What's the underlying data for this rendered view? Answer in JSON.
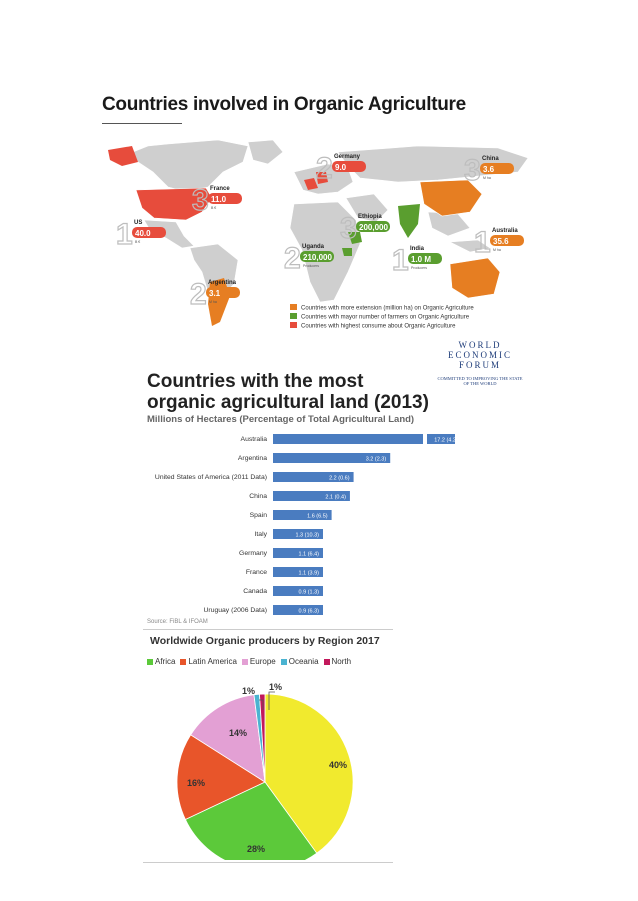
{
  "page_title": "Countries involved in Organic Agriculture",
  "map": {
    "legend": [
      {
        "label": "Countries with more extension (million ha) on Organic Agriculture",
        "color": "#e67e22"
      },
      {
        "label": "Countries with mayor number of farmers on Organic Agriculture",
        "color": "#5a9e2f"
      },
      {
        "label": "Countries with highest consume about Organic Agriculture",
        "color": "#e74c3c"
      }
    ],
    "callouts": [
      {
        "rank": "1",
        "country": "US",
        "value": "40.0",
        "unit": "B €",
        "color": "#e74c3c"
      },
      {
        "rank": "2",
        "country": "Germany",
        "value": "9.0",
        "unit": "",
        "color": "#e74c3c"
      },
      {
        "rank": "3",
        "country": "France",
        "value": "11.0",
        "unit": "B €",
        "color": "#e74c3c"
      },
      {
        "rank": "1",
        "country": "Australia",
        "value": "35.6",
        "unit": "M ha",
        "color": "#e67e22"
      },
      {
        "rank": "2",
        "country": "Argentina",
        "value": "3.1",
        "unit": "M ha",
        "color": "#e67e22"
      },
      {
        "rank": "3",
        "country": "China",
        "value": "3.6",
        "unit": "M ha",
        "color": "#e67e22"
      },
      {
        "rank": "1",
        "country": "India",
        "value": "1.0 M",
        "unit": "Producers",
        "color": "#5a9e2f"
      },
      {
        "rank": "2",
        "country": "Uganda",
        "value": "210,000",
        "unit": "Producers",
        "color": "#5a9e2f"
      },
      {
        "rank": "3",
        "country": "Ethiopia",
        "value": "200,000",
        "unit": "",
        "color": "#5a9e2f"
      }
    ]
  },
  "wef": {
    "line1": "WORLD",
    "line2": "ECONOMIC",
    "line3": "FORUM",
    "tagline": "COMMITTED TO IMPROVING THE STATE OF THE WORLD"
  },
  "chart_data": [
    {
      "type": "bar",
      "title": "Countries with the most organic agricultural land (2013)",
      "subtitle": "Millions of  Hectares (Percentage of Total Agricultural Land)",
      "source": "Source: FiBL & IFOAM",
      "categories": [
        "Australia",
        "Argentina",
        "United States of America (2011 Data)",
        "China",
        "Spain",
        "Italy",
        "Germany",
        "France",
        "Canada",
        "Uruguay (2006 Data)"
      ],
      "values": [
        17.2,
        3.2,
        2.2,
        2.1,
        1.6,
        1.3,
        1.1,
        1.1,
        0.9,
        0.9
      ],
      "data_labels": [
        "17.2 (4.2)",
        "3.2 (2.3)",
        "2.2 (0.6)",
        "2.1 (0.4)",
        "1.6 (6.5)",
        "1.3 (10.3)",
        "1.1 (6.4)",
        "1.1 (3.9)",
        "0.9 (1.3)",
        "0.9 (6.3)"
      ],
      "color": "#4a7cc0"
    },
    {
      "type": "pie",
      "title": "Worldwide Organic producers by Region 2017",
      "categories": [
        "Africa",
        "Latin America",
        "Europe",
        "Oceania",
        "North"
      ],
      "values": [
        28,
        16,
        14,
        1,
        1
      ],
      "colors": [
        "#5cc93a",
        "#e8552a",
        "#e3a0d4",
        "#4ab3d1",
        "#c2185b"
      ],
      "labels": [
        {
          "text": "40%"
        },
        {
          "text": "28%"
        },
        {
          "text": "16%"
        },
        {
          "text": "14%"
        },
        {
          "text": "1%"
        },
        {
          "text": "1%"
        }
      ],
      "other_color": "#f1ea2e"
    }
  ]
}
